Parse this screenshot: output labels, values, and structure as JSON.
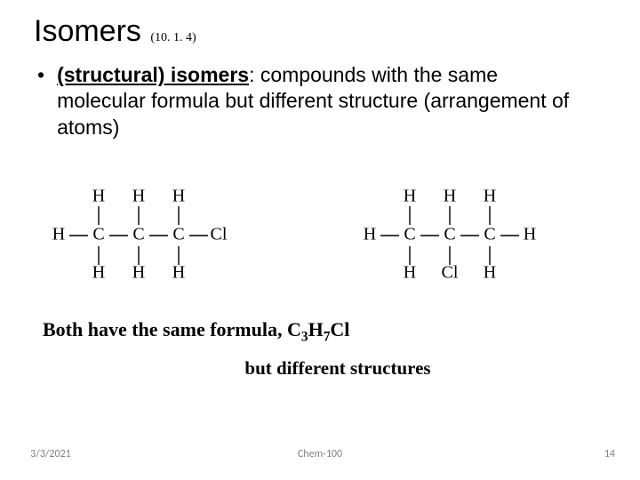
{
  "title": "Isomers",
  "title_ref": "(10. 1. 4)",
  "bullet": {
    "term": "(structural) isomers",
    "rest": ": compounds with the same molecular formula but different structure (arrangement of atoms)"
  },
  "molecules": {
    "left": {
      "top": [
        "",
        "H",
        "H",
        "H",
        ""
      ],
      "mid": [
        "H",
        "C",
        "C",
        "C",
        "Cl"
      ],
      "bottom": [
        "",
        "H",
        "H",
        "H",
        ""
      ]
    },
    "right": {
      "top": [
        "",
        "H",
        "H",
        "H",
        ""
      ],
      "mid": [
        "H",
        "C",
        "C",
        "C",
        "H"
      ],
      "bottom": [
        "",
        "H",
        "Cl",
        "H",
        ""
      ]
    },
    "text_color": "#000000",
    "font_family_serif": "Times New Roman"
  },
  "caption_line1_prefix": "Both have the same formula, C",
  "caption_line1_sub1": "3",
  "caption_line1_mid": "H",
  "caption_line1_sub2": "7",
  "caption_line1_suffix": "Cl",
  "caption_line2": "but different structures",
  "footer": {
    "date": "3/3/2021",
    "center": "Chem-100",
    "page": "14"
  },
  "colors": {
    "background": "#ffffff",
    "text": "#000000",
    "footer": "#7f7f7f"
  }
}
